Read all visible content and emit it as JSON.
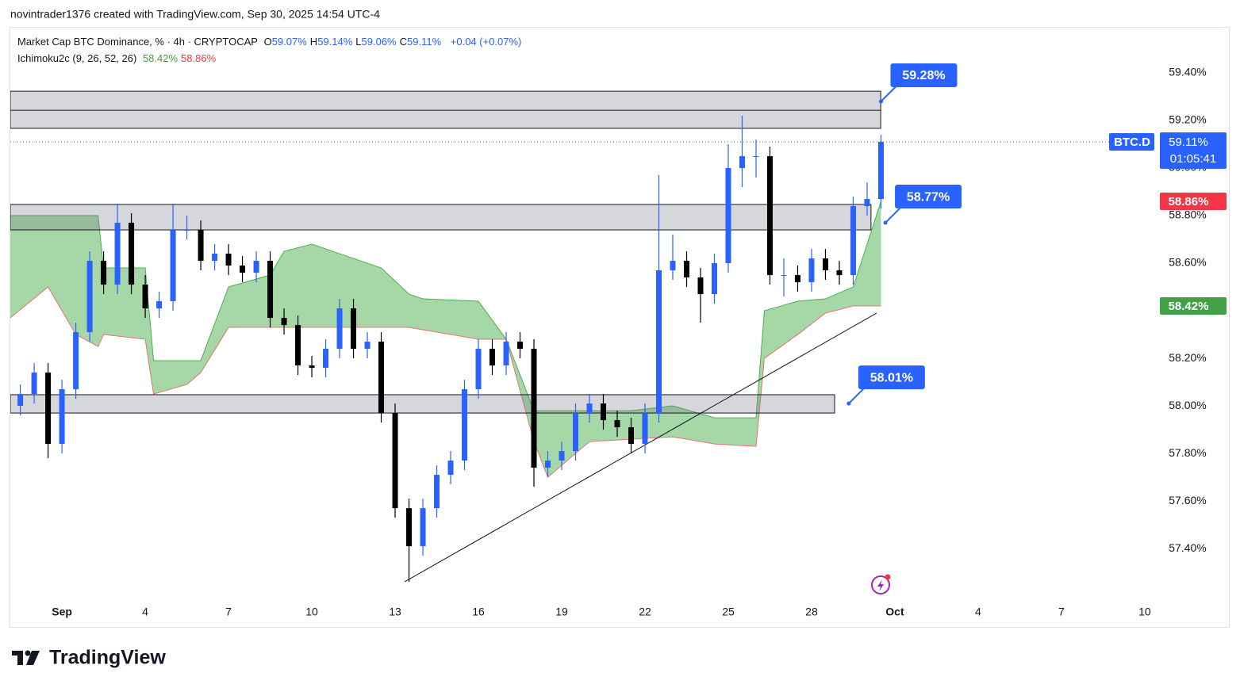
{
  "caption": "novintrader1376 created with TradingView.com, Sep 30, 2025 14:54 UTC-4",
  "brand": "TradingView",
  "chart_data": {
    "type": "candlestick",
    "title": "Market Cap BTC Dominance, % · 4h · CRYPTOCAP",
    "legend_ohlc": [
      {
        "name": "O",
        "value": 59.07,
        "label": "59.07%"
      },
      {
        "name": "H",
        "value": 59.14,
        "label": "59.14%"
      },
      {
        "name": "L",
        "value": 59.06,
        "label": "59.06%"
      },
      {
        "name": "C",
        "value": 59.11,
        "label": "59.11%"
      }
    ],
    "change": "+0.04 (+0.07%)",
    "indicator": {
      "name": "Ichimoku2c (9, 26, 52, 26)",
      "values": [
        {
          "value": 58.42,
          "label": "58.42%",
          "color": "#43a047"
        },
        {
          "value": 58.86,
          "label": "58.86%",
          "color": "#f23645"
        }
      ]
    },
    "symbol": "BTC.D",
    "countdown": "01:05:41",
    "price_labels": [
      {
        "value": 59.11,
        "label": "59.11%",
        "color": "#2962ff"
      },
      {
        "value": 58.86,
        "label": "58.86%",
        "color": "#f23645"
      },
      {
        "value": 58.42,
        "label": "58.42%",
        "color": "#43a047"
      }
    ],
    "up_color": "#2962ff",
    "down_color": "#000000",
    "xlim": [
      -0.86,
      43.06
    ],
    "xticks": [
      {
        "value": 1,
        "label": "Sep"
      },
      4,
      7,
      10,
      13,
      16,
      19,
      22,
      25,
      28,
      {
        "value": 31,
        "label": "Oct"
      },
      {
        "value": 34,
        "label": "4"
      },
      {
        "value": 37,
        "label": "7"
      },
      {
        "value": 40,
        "label": "10"
      }
    ],
    "ylim": [
      57.167,
      59.59
    ],
    "yticks": [
      {
        "value": 57.4,
        "label": "57.40%"
      },
      {
        "value": 57.6,
        "label": "57.60%"
      },
      {
        "value": 57.8,
        "label": "57.80%"
      },
      {
        "value": 58.0,
        "label": "58.00%"
      },
      {
        "value": 58.2,
        "label": "58.20%"
      },
      {
        "value": 58.4,
        "label": "58.40%"
      },
      {
        "value": 58.6,
        "label": "58.60%"
      },
      {
        "value": 58.8,
        "label": "58.80%"
      },
      {
        "value": 59.0,
        "label": "59.00%"
      },
      {
        "value": 59.2,
        "label": "59.20%"
      },
      {
        "value": 59.4,
        "label": "59.40%"
      }
    ],
    "candles": {
      "x": [
        -0.5,
        0,
        0.5,
        1,
        1.5,
        2,
        2.5,
        3,
        3.5,
        4,
        4.5,
        5,
        5.5,
        6,
        6.5,
        7,
        7.5,
        8,
        8.5,
        9,
        9.5,
        10,
        10.5,
        11,
        11.5,
        12,
        12.5,
        13,
        13.5,
        14,
        14.5,
        15,
        15.5,
        16,
        16.5,
        17,
        17.5,
        18,
        18.5,
        19,
        19.5,
        20,
        20.5,
        21,
        21.5,
        22,
        22.5,
        23,
        23.5,
        24,
        24.5,
        25,
        25.5,
        26,
        26.5,
        27,
        27.5,
        28,
        28.5,
        29,
        29.5,
        30,
        30.5
      ],
      "open": [
        58.0,
        58.05,
        58.14,
        57.84,
        58.07,
        58.31,
        58.61,
        58.51,
        58.77,
        58.51,
        58.41,
        58.44,
        58.74,
        58.74,
        58.61,
        58.64,
        58.59,
        58.56,
        58.61,
        58.37,
        58.34,
        58.17,
        58.16,
        58.24,
        58.41,
        58.24,
        58.27,
        57.97,
        57.57,
        57.41,
        57.57,
        57.71,
        57.77,
        58.07,
        58.24,
        58.17,
        58.27,
        58.24,
        57.74,
        57.77,
        57.81,
        57.97,
        58.01,
        57.94,
        57.91,
        57.84,
        57.97,
        58.57,
        58.61,
        58.54,
        58.47,
        58.6,
        59.0,
        59.05,
        59.05,
        58.55,
        58.55,
        58.52,
        58.62,
        58.57,
        58.55,
        58.84,
        58.87
      ],
      "high": [
        58.09,
        58.18,
        58.18,
        58.11,
        58.35,
        58.65,
        58.65,
        58.85,
        58.81,
        58.55,
        58.48,
        58.85,
        58.8,
        58.78,
        58.68,
        58.68,
        58.63,
        58.65,
        58.65,
        58.41,
        58.38,
        58.21,
        58.28,
        58.45,
        58.45,
        58.31,
        58.31,
        58.01,
        57.61,
        57.61,
        57.75,
        57.81,
        58.11,
        58.28,
        58.28,
        58.31,
        58.31,
        58.28,
        57.81,
        57.85,
        58.01,
        58.05,
        58.05,
        57.98,
        57.95,
        58.01,
        58.97,
        58.72,
        58.65,
        58.58,
        58.64,
        59.1,
        59.22,
        59.12,
        59.09,
        58.62,
        58.59,
        58.66,
        58.66,
        58.61,
        58.88,
        58.94,
        59.14
      ],
      "low": [
        57.96,
        58.01,
        57.78,
        57.8,
        58.03,
        58.27,
        58.47,
        58.47,
        58.47,
        58.37,
        58.37,
        58.4,
        58.7,
        58.57,
        58.57,
        58.55,
        58.52,
        58.52,
        58.33,
        58.3,
        58.13,
        58.12,
        58.12,
        58.2,
        58.2,
        58.2,
        57.93,
        57.53,
        57.26,
        57.37,
        57.53,
        57.67,
        57.73,
        58.03,
        58.13,
        58.13,
        58.2,
        57.66,
        57.7,
        57.73,
        57.77,
        57.93,
        57.9,
        57.87,
        57.8,
        57.8,
        57.93,
        58.53,
        58.5,
        58.35,
        58.43,
        58.56,
        58.92,
        58.96,
        58.51,
        58.46,
        58.48,
        58.48,
        58.53,
        58.51,
        58.51,
        58.8,
        58.83
      ],
      "close": [
        58.05,
        58.14,
        57.84,
        58.07,
        58.31,
        58.61,
        58.51,
        58.77,
        58.51,
        58.41,
        58.44,
        58.74,
        58.74,
        58.61,
        58.64,
        58.59,
        58.56,
        58.61,
        58.37,
        58.34,
        58.17,
        58.16,
        58.24,
        58.41,
        58.24,
        58.27,
        57.97,
        57.57,
        57.41,
        57.57,
        57.71,
        57.77,
        58.07,
        58.24,
        58.17,
        58.27,
        58.24,
        57.74,
        57.77,
        57.81,
        57.97,
        58.01,
        57.94,
        57.91,
        57.84,
        57.97,
        58.57,
        58.61,
        58.54,
        58.47,
        58.6,
        59.0,
        59.05,
        59.05,
        58.55,
        58.55,
        58.52,
        58.62,
        58.57,
        58.55,
        58.84,
        58.87,
        59.11
      ]
    },
    "cloud": {
      "color": "#4caf50",
      "edge_color": "#e57373",
      "x": [
        -0.86,
        0.5,
        1.5,
        2.3,
        2.5,
        4.0,
        4.3,
        5.5,
        6.0,
        7.0,
        8.5,
        9.0,
        10.0,
        11.5,
        12.5,
        13.5,
        14.0,
        16.0,
        17.0,
        18.0,
        18.5,
        20.0,
        21.5,
        23.0,
        24.5,
        26.0,
        26.3,
        27.5,
        28.5,
        29.5,
        30.5
      ],
      "upper": [
        58.8,
        58.8,
        58.8,
        58.8,
        58.58,
        58.58,
        58.19,
        58.19,
        58.19,
        58.5,
        58.55,
        58.65,
        58.68,
        58.62,
        58.58,
        58.47,
        58.45,
        58.44,
        58.28,
        57.98,
        57.98,
        57.98,
        57.98,
        58.0,
        57.95,
        57.95,
        58.4,
        58.44,
        58.45,
        58.5,
        58.86
      ],
      "lower": [
        58.37,
        58.5,
        58.3,
        58.25,
        58.3,
        58.28,
        58.05,
        58.09,
        58.14,
        58.33,
        58.33,
        58.33,
        58.33,
        58.33,
        58.33,
        58.33,
        58.32,
        58.28,
        58.28,
        57.85,
        57.7,
        57.85,
        57.86,
        57.87,
        57.84,
        57.83,
        58.2,
        58.3,
        58.39,
        58.42,
        58.42
      ]
    },
    "zones": [
      {
        "x": [
          -0.86,
          30.49
        ],
        "top": 59.323,
        "bottom": 59.167,
        "mid": 59.243
      },
      {
        "x": [
          -0.86,
          30.14
        ],
        "top": 58.847,
        "bottom": 58.74
      },
      {
        "x": [
          -0.86,
          28.83
        ],
        "top": 58.047,
        "bottom": 57.97
      }
    ],
    "trend_line": {
      "x": [
        13.34,
        30.34
      ],
      "y": [
        57.26,
        58.39
      ]
    },
    "callouts": [
      {
        "x": 30.5,
        "value": 59.28,
        "label": "59.28%"
      },
      {
        "x": 30.66,
        "value": 58.77,
        "label": "58.77%"
      },
      {
        "x": 29.34,
        "value": 58.01,
        "label": "58.01%"
      }
    ]
  }
}
